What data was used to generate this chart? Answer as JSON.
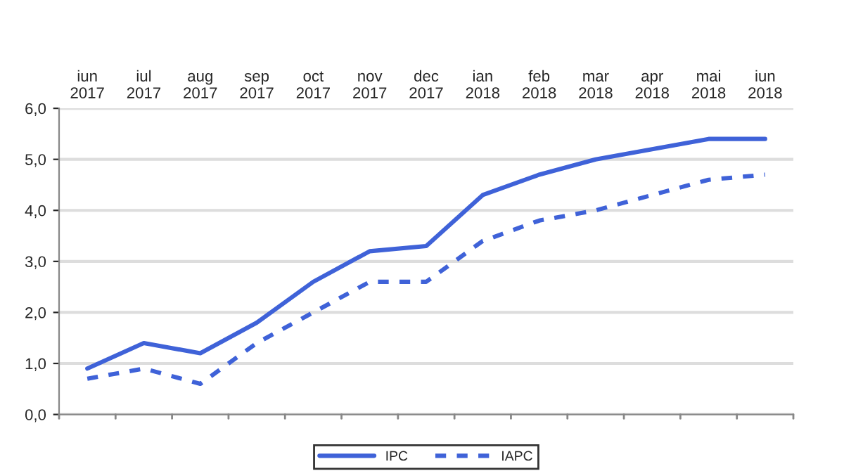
{
  "chart_data": {
    "type": "line",
    "categories": [
      "iun\n2017",
      "iul\n2017",
      "aug\n2017",
      "sep\n2017",
      "oct\n2017",
      "nov\n2017",
      "dec\n2017",
      "ian\n2018",
      "feb\n2018",
      "mar\n2018",
      "apr\n2018",
      "mai\n2018",
      "iun\n2018"
    ],
    "series": [
      {
        "name": "IPC",
        "color": "#3f62d8",
        "line_style": "solid",
        "values": [
          0.9,
          1.4,
          1.2,
          1.8,
          2.6,
          3.2,
          3.3,
          4.3,
          4.7,
          5.0,
          5.2,
          5.4,
          5.4
        ]
      },
      {
        "name": "IAPC",
        "color": "#3f62d8",
        "line_style": "dashed",
        "values": [
          0.7,
          0.9,
          0.6,
          1.4,
          2.0,
          2.6,
          2.6,
          3.4,
          3.8,
          4.0,
          4.3,
          4.6,
          4.7
        ]
      }
    ],
    "ylim": [
      0,
      6
    ],
    "yticks": [
      {
        "value": 0,
        "label": "0,0"
      },
      {
        "value": 1,
        "label": "1,0"
      },
      {
        "value": 2,
        "label": "2,0"
      },
      {
        "value": 3,
        "label": "3,0"
      },
      {
        "value": 4,
        "label": "4,0"
      },
      {
        "value": 5,
        "label": "5,0"
      },
      {
        "value": 6,
        "label": "6,0"
      }
    ],
    "grid": "y",
    "legend": "bottom",
    "marker": "none"
  }
}
